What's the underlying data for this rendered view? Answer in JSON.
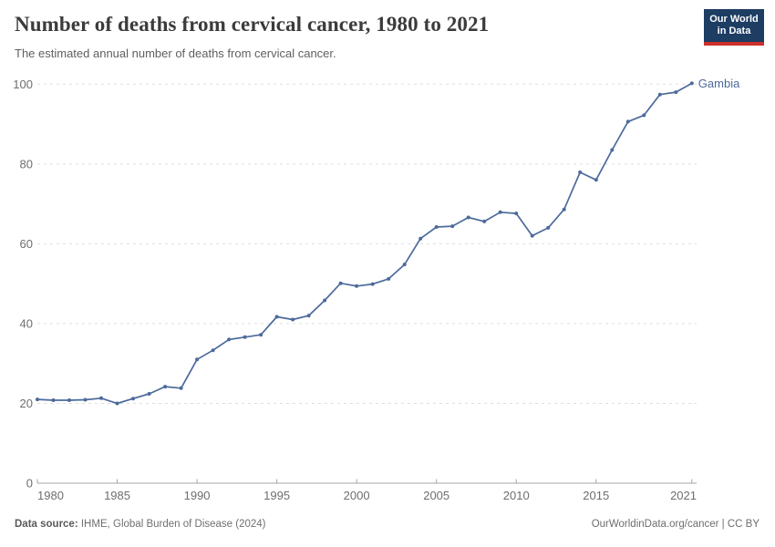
{
  "header": {
    "title": "Number of deaths from cervical cancer, 1980 to 2021",
    "subtitle": "The estimated annual number of deaths from cervical cancer.",
    "logo": {
      "line1": "Our World",
      "line2": "in Data",
      "bg_color": "#1d3d63",
      "accent_color": "#cc302a"
    }
  },
  "chart_data": {
    "type": "line",
    "title": "Number of deaths from cervical cancer, 1980 to 2021",
    "subtitle": "The estimated annual number of deaths from cervical cancer.",
    "xlabel": "",
    "ylabel": "",
    "xlim": [
      1980,
      2021
    ],
    "ylim": [
      0,
      100
    ],
    "xticks": [
      1980,
      1985,
      1990,
      1995,
      2000,
      2005,
      2010,
      2015,
      2021
    ],
    "yticks": [
      0,
      20,
      40,
      60,
      80,
      100
    ],
    "grid": "horizontal-dashed",
    "legend_position": "end-of-line-label",
    "colors": {
      "line": "#4c6a9c",
      "gridline": "#dddddd",
      "axis": "#a5a5a5",
      "tick_label": "#6e6e6e"
    },
    "series": [
      {
        "name": "Gambia",
        "color": "#4c6a9c",
        "x": [
          1980,
          1981,
          1982,
          1983,
          1984,
          1985,
          1986,
          1987,
          1988,
          1989,
          1990,
          1991,
          1992,
          1993,
          1994,
          1995,
          1996,
          1997,
          1998,
          1999,
          2000,
          2001,
          2002,
          2003,
          2004,
          2005,
          2006,
          2007,
          2008,
          2009,
          2010,
          2011,
          2012,
          2013,
          2014,
          2015,
          2016,
          2017,
          2018,
          2019,
          2020,
          2021
        ],
        "values": [
          21.0,
          20.8,
          20.8,
          20.9,
          21.3,
          20.0,
          21.2,
          22.4,
          24.2,
          23.8,
          31.0,
          33.3,
          36.0,
          36.6,
          37.2,
          41.7,
          41.0,
          42.0,
          45.8,
          50.1,
          49.4,
          49.9,
          51.2,
          54.8,
          61.3,
          64.2,
          64.4,
          66.6,
          65.6,
          67.9,
          67.6,
          62.0,
          64.0,
          68.6,
          77.9,
          76.0,
          83.5,
          90.6,
          92.2,
          97.4,
          98.0,
          100.2
        ]
      }
    ]
  },
  "footer": {
    "source_label": "Data source:",
    "source_text": " IHME, Global Burden of Disease (2024)",
    "credit": "OurWorldinData.org/cancer | CC BY"
  }
}
